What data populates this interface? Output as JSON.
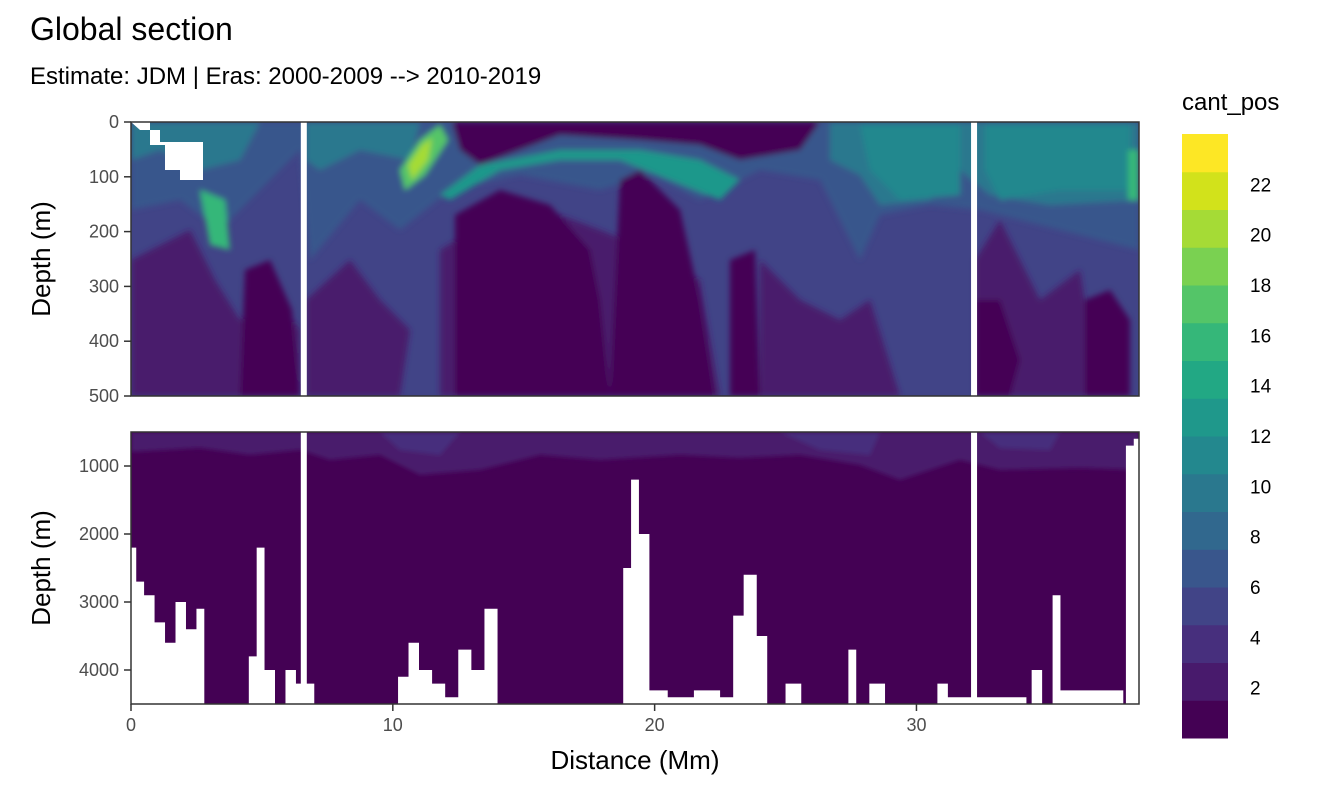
{
  "chart_data": {
    "type": "heatmap",
    "title": "Global section",
    "subtitle": "Estimate: JDM  | Eras: 2000-2009 --> 2010-2019",
    "xlabel": "Distance (Mm)",
    "ylabel": "Depth (m)",
    "x_range": [
      0,
      38.5
    ],
    "x_ticks": [
      0,
      10,
      20,
      30
    ],
    "panels": [
      {
        "name": "upper",
        "y_range": [
          0,
          500
        ],
        "y_ticks": [
          0,
          100,
          200,
          300,
          400,
          500
        ],
        "gaps_x": [
          6.6,
          32.2
        ]
      },
      {
        "name": "lower",
        "y_range": [
          500,
          4500
        ],
        "y_ticks": [
          1000,
          2000,
          3000,
          4000
        ],
        "gaps_x": [
          6.6,
          32.2
        ],
        "seafloor_depths": [
          {
            "x": 0.0,
            "depth": 2200
          },
          {
            "x": 0.2,
            "depth": 2700
          },
          {
            "x": 0.5,
            "depth": 2900
          },
          {
            "x": 0.9,
            "depth": 3300
          },
          {
            "x": 1.3,
            "depth": 3600
          },
          {
            "x": 1.7,
            "depth": 3000
          },
          {
            "x": 2.1,
            "depth": 3400
          },
          {
            "x": 2.5,
            "depth": 3100
          },
          {
            "x": 2.8,
            "depth": 4500
          },
          {
            "x": 4.2,
            "depth": 4500
          },
          {
            "x": 4.5,
            "depth": 3800
          },
          {
            "x": 4.8,
            "depth": 2200
          },
          {
            "x": 5.1,
            "depth": 4000
          },
          {
            "x": 5.5,
            "depth": 4500
          },
          {
            "x": 5.9,
            "depth": 4000
          },
          {
            "x": 6.3,
            "depth": 4200
          },
          {
            "x": 7.0,
            "depth": 4500
          },
          {
            "x": 9.8,
            "depth": 4500
          },
          {
            "x": 10.2,
            "depth": 4100
          },
          {
            "x": 10.6,
            "depth": 3600
          },
          {
            "x": 11.0,
            "depth": 4000
          },
          {
            "x": 11.5,
            "depth": 4200
          },
          {
            "x": 12.0,
            "depth": 4400
          },
          {
            "x": 12.5,
            "depth": 3700
          },
          {
            "x": 13.0,
            "depth": 4000
          },
          {
            "x": 13.5,
            "depth": 3100
          },
          {
            "x": 14.0,
            "depth": 4500
          },
          {
            "x": 18.2,
            "depth": 4500
          },
          {
            "x": 18.8,
            "depth": 2500
          },
          {
            "x": 19.1,
            "depth": 1200
          },
          {
            "x": 19.4,
            "depth": 2000
          },
          {
            "x": 19.8,
            "depth": 4300
          },
          {
            "x": 20.5,
            "depth": 4400
          },
          {
            "x": 21.5,
            "depth": 4300
          },
          {
            "x": 22.5,
            "depth": 4400
          },
          {
            "x": 23.0,
            "depth": 3200
          },
          {
            "x": 23.4,
            "depth": 2600
          },
          {
            "x": 23.9,
            "depth": 3500
          },
          {
            "x": 24.3,
            "depth": 4500
          },
          {
            "x": 25.0,
            "depth": 4200
          },
          {
            "x": 25.6,
            "depth": 4500
          },
          {
            "x": 27.2,
            "depth": 4500
          },
          {
            "x": 27.4,
            "depth": 3700
          },
          {
            "x": 27.7,
            "depth": 4500
          },
          {
            "x": 28.2,
            "depth": 4200
          },
          {
            "x": 28.8,
            "depth": 4500
          },
          {
            "x": 30.6,
            "depth": 4500
          },
          {
            "x": 30.8,
            "depth": 4200
          },
          {
            "x": 31.2,
            "depth": 4400
          },
          {
            "x": 34.2,
            "depth": 4500
          },
          {
            "x": 34.4,
            "depth": 4000
          },
          {
            "x": 34.8,
            "depth": 4500
          },
          {
            "x": 35.2,
            "depth": 2900
          },
          {
            "x": 35.5,
            "depth": 4300
          },
          {
            "x": 37.9,
            "depth": 4500
          },
          {
            "x": 38.0,
            "depth": 700
          },
          {
            "x": 38.3,
            "depth": 600
          },
          {
            "x": 38.5,
            "depth": 500
          }
        ]
      }
    ],
    "legend": {
      "title": "cant_pos",
      "breaks": [
        0,
        2,
        4,
        6,
        8,
        10,
        12,
        14,
        16,
        18,
        20,
        22,
        24
      ],
      "labels": [
        "2",
        "4",
        "6",
        "8",
        "10",
        "12",
        "14",
        "16",
        "18",
        "20",
        "22"
      ],
      "colors": [
        "#440154",
        "#481a6c",
        "#472f7d",
        "#414487",
        "#39568c",
        "#31688e",
        "#2a788e",
        "#23888e",
        "#1f988b",
        "#22a884",
        "#35b779",
        "#54c568",
        "#7ad151",
        "#a5db36",
        "#d2e21b",
        "#fde725"
      ],
      "placement": "right"
    }
  }
}
